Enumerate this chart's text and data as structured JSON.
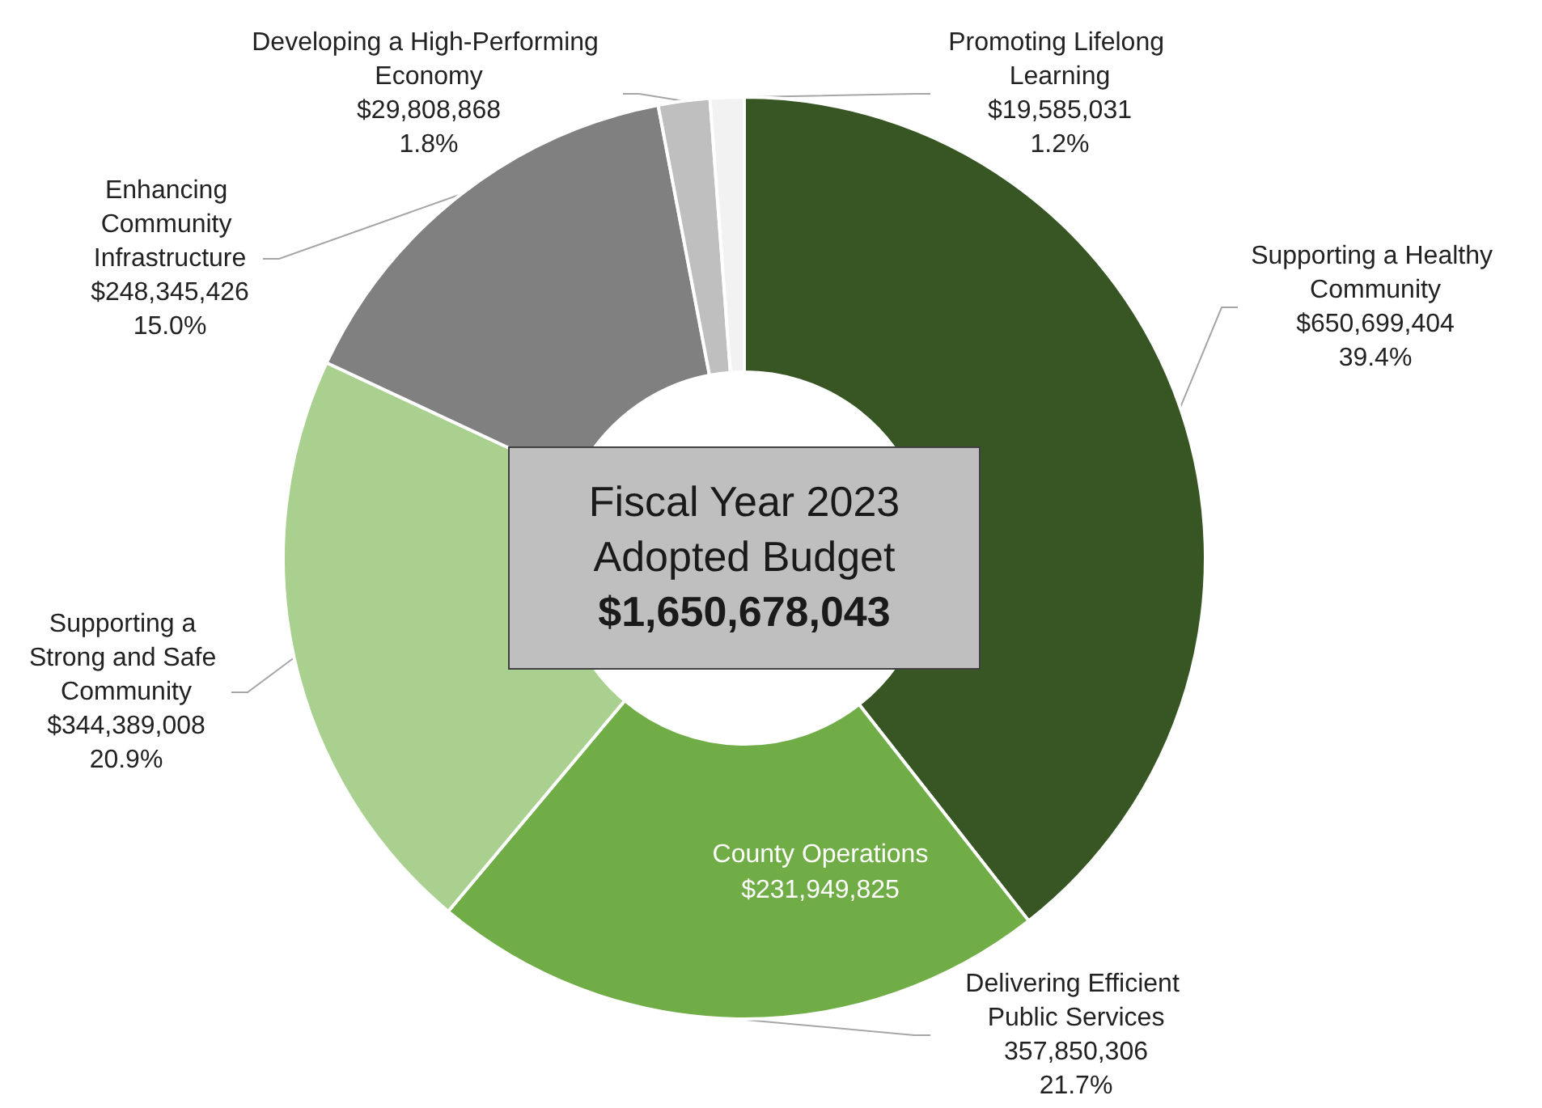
{
  "chart_data": {
    "type": "donut",
    "title": "Fiscal Year 2023 Adopted Budget",
    "subtitle": "$1,650,678,043",
    "categories": [
      "Supporting a Healthy Community",
      "Delivering Efficient Public Services",
      "Supporting a Strong and Safe Community",
      "Enhancing Community Infrastructure",
      "Developing a High-Performing Economy",
      "Promoting Lifelong Learning"
    ],
    "values": [
      650699404,
      357850306,
      344389008,
      248345426,
      29808868,
      19585031
    ],
    "colors": [
      "#375623",
      "#70ad47",
      "#a9d08e",
      "#808080",
      "#bfbfbf",
      "#f2f2f2"
    ],
    "value_labels": [
      "$650,699,404\n39.4%",
      "357,850,306\n21.7%",
      "$344,389,008\n20.9%",
      "$248,345,426\n15.0%",
      "$29,808,868\n1.8%",
      "$19,585,031\n1.2%"
    ],
    "annotations": [
      "County Operations\n$231,949,825"
    ]
  }
}
